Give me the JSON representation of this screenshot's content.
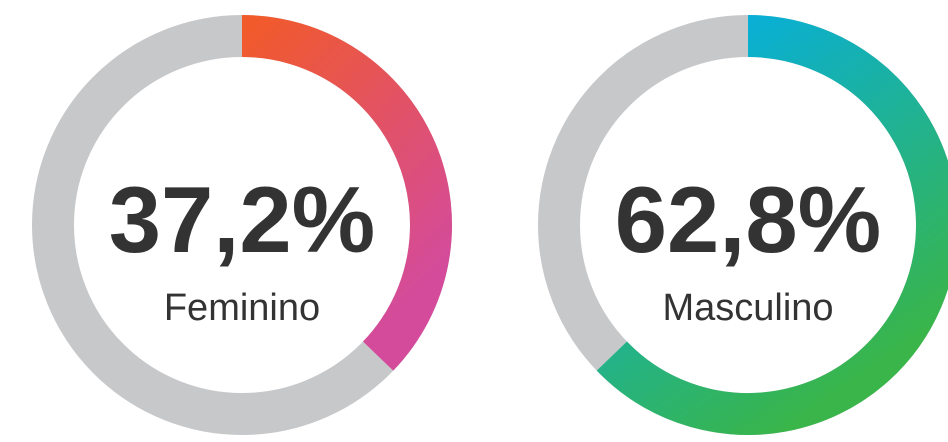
{
  "chart_data": [
    {
      "type": "donut",
      "categories": [
        "Feminino"
      ],
      "values": [
        37.2
      ],
      "value_labels": [
        "37,2%"
      ],
      "ylim": [
        0,
        100
      ],
      "gradient": [
        "#f15a2b",
        "#d44b9b"
      ],
      "track_color": "#c7c8ca"
    },
    {
      "type": "donut",
      "categories": [
        "Masculino"
      ],
      "values": [
        62.8
      ],
      "value_labels": [
        "62,8%"
      ],
      "ylim": [
        0,
        100
      ],
      "gradient": [
        "#00aeef",
        "#39b54a"
      ],
      "track_color": "#c7c8ca"
    }
  ]
}
